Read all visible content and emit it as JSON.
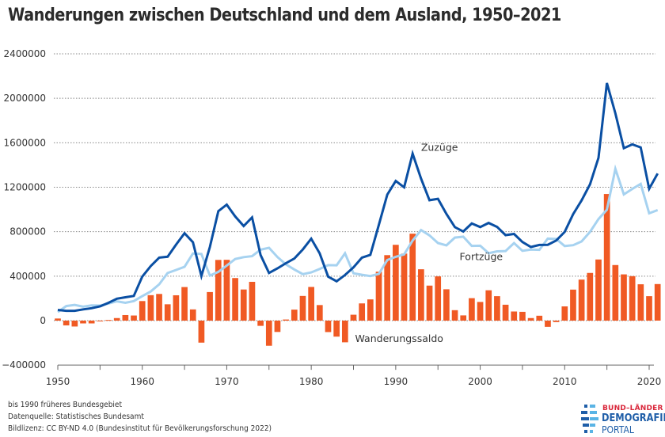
{
  "title": "Wanderungen zwischen Deutschland und dem Ausland, 1950–2021",
  "footnotes": [
    "bis 1990 früheres Bundesgebiet",
    "Datenquelle: Statistisches Bundesamt",
    "Bildlizenz: CC BY-ND 4.0 (Bundesinstitut für Bevölkerungsforschung 2022)"
  ],
  "logo": {
    "line1": "BUND–LÄNDER",
    "line2": "DEMOGRAFIE",
    "line3": "PORTAL"
  },
  "colors": {
    "zuzuege": "#0a4fa3",
    "fortzuege": "#a6d2f0",
    "saldo": "#f05a24",
    "grid": "#888888",
    "axis": "#666666"
  },
  "chart_data": {
    "type": "line",
    "title": "Wanderungen zwischen Deutschland und dem Ausland, 1950–2021",
    "xlabel": "",
    "ylabel": "",
    "xlim": [
      1950,
      2021
    ],
    "ylim": [
      -400000,
      2400000
    ],
    "grid": true,
    "y_ticks": [
      -400000,
      0,
      400000,
      800000,
      1200000,
      1600000,
      2000000,
      2400000
    ],
    "y_tick_labels": [
      "−400000",
      "0",
      "400000",
      "800000",
      "1200000",
      "1600000",
      "2000000",
      "2400000"
    ],
    "x_ticks": [
      1950,
      1960,
      1970,
      1980,
      1990,
      2000,
      2010,
      2020
    ],
    "x_tick_labels": [
      "1950",
      "1960",
      "1970",
      "1980",
      "1990",
      "2000",
      "2010",
      "2020"
    ],
    "x": [
      1950,
      1951,
      1952,
      1953,
      1954,
      1955,
      1956,
      1957,
      1958,
      1959,
      1960,
      1961,
      1962,
      1963,
      1964,
      1965,
      1966,
      1967,
      1968,
      1969,
      1970,
      1971,
      1972,
      1973,
      1974,
      1975,
      1976,
      1977,
      1978,
      1979,
      1980,
      1981,
      1982,
      1983,
      1984,
      1985,
      1986,
      1987,
      1988,
      1989,
      1990,
      1991,
      1992,
      1993,
      1994,
      1995,
      1996,
      1997,
      1998,
      1999,
      2000,
      2001,
      2002,
      2003,
      2004,
      2005,
      2006,
      2007,
      2008,
      2009,
      2010,
      2011,
      2012,
      2013,
      2014,
      2015,
      2016,
      2017,
      2018,
      2019,
      2020,
      2021
    ],
    "series": [
      {
        "name": "Zuzüge",
        "kind": "line",
        "label": "Zuzüge",
        "values": [
          96000,
          88000,
          88000,
          101000,
          112000,
          128000,
          160000,
          197000,
          210000,
          222000,
          396000,
          491000,
          567000,
          575000,
          684000,
          786000,
          705000,
          402000,
          662000,
          985000,
          1043000,
          937000,
          851000,
          929000,
          591000,
          429000,
          470000,
          516000,
          559000,
          640000,
          737000,
          605000,
          396000,
          354000,
          410000,
          479000,
          567000,
          592000,
          860000,
          1134000,
          1256000,
          1199000,
          1502000,
          1277000,
          1083000,
          1096000,
          960000,
          841000,
          802000,
          874000,
          842000,
          879000,
          843000,
          769000,
          780000,
          707000,
          662000,
          681000,
          682000,
          721000,
          798000,
          958000,
          1081000,
          1226000,
          1465000,
          2137000,
          1865000,
          1551000,
          1585000,
          1558000,
          1186000,
          1323000
        ]
      },
      {
        "name": "Fortzüge",
        "kind": "line",
        "label": "Fortzüge",
        "values": [
          77000,
          131000,
          141000,
          126000,
          137000,
          135000,
          154000,
          174000,
          160000,
          176000,
          220000,
          262000,
          327000,
          428000,
          456000,
          484000,
          604000,
          600000,
          405000,
          439000,
          496000,
          554000,
          571000,
          580000,
          638000,
          655000,
          572000,
          506000,
          460000,
          418000,
          434000,
          465000,
          499000,
          498000,
          605000,
          426000,
          412000,
          401000,
          420000,
          545000,
          574000,
          596000,
          720000,
          815000,
          767000,
          698000,
          677000,
          747000,
          755000,
          672000,
          674000,
          606000,
          623000,
          626000,
          698000,
          628000,
          639000,
          637000,
          738000,
          734000,
          671000,
          679000,
          712000,
          798000,
          914000,
          998000,
          1365000,
          1135000,
          1185000,
          1230000,
          966000,
          994000
        ]
      },
      {
        "name": "Wanderungssaldo",
        "kind": "bar",
        "label": "Wanderungssaldo",
        "values": [
          19000,
          -43000,
          -53000,
          -25000,
          -25000,
          -7000,
          6000,
          23000,
          50000,
          46000,
          176000,
          229000,
          240000,
          147000,
          228000,
          302000,
          101000,
          -198000,
          257000,
          546000,
          547000,
          383000,
          280000,
          349000,
          -47000,
          -226000,
          -102000,
          10000,
          99000,
          222000,
          303000,
          140000,
          -103000,
          -144000,
          -195000,
          53000,
          155000,
          191000,
          440000,
          589000,
          682000,
          603000,
          782000,
          462000,
          315000,
          398000,
          282000,
          94000,
          47000,
          202000,
          168000,
          273000,
          220000,
          143000,
          82000,
          79000,
          23000,
          44000,
          -56000,
          -13000,
          128000,
          279000,
          369000,
          429000,
          550000,
          1139000,
          500000,
          416000,
          400000,
          327000,
          220000,
          329000
        ]
      }
    ],
    "annotations": [
      {
        "text": "Zuzüge",
        "near_year": 1993,
        "series": "Zuzüge"
      },
      {
        "text": "Fortzüge",
        "near_year": 2001,
        "series": "Fortzüge"
      },
      {
        "text": "Wanderungssaldo",
        "near_year": 1986,
        "series": "Wanderungssaldo"
      }
    ],
    "legend": "inline-labels"
  }
}
